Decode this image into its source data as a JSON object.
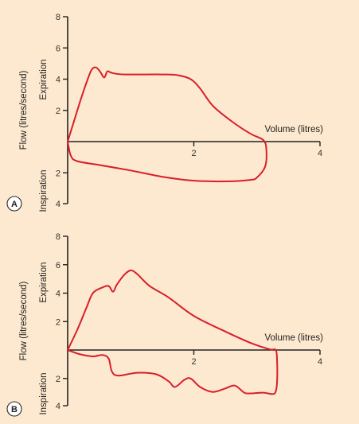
{
  "chart_data": [
    {
      "panel": "A",
      "type": "line",
      "ylabel": "Flow (litres/second)",
      "xlabel": "Volume (litres)",
      "upper_label": "Expiration",
      "lower_label": "Inspiration",
      "xticks": [
        {
          "value": 2,
          "label": "2"
        },
        {
          "value": 4,
          "label": "4"
        }
      ],
      "yticks_upper": [
        {
          "value": 8,
          "label": "8"
        },
        {
          "value": 6,
          "label": "6"
        },
        {
          "value": 4,
          "label": "4"
        },
        {
          "value": 2,
          "label": "2"
        }
      ],
      "yticks_lower": [
        {
          "value": -2,
          "label": "2"
        },
        {
          "value": -4,
          "label": "4"
        }
      ],
      "xlim": [
        0,
        4
      ],
      "ylim": [
        -4,
        8
      ],
      "series": [
        {
          "color": "#d81e2a",
          "points": [
            [
              0,
              0
            ],
            [
              0.1,
              1.3
            ],
            [
              0.2,
              2.6
            ],
            [
              0.3,
              3.8
            ],
            [
              0.38,
              4.6
            ],
            [
              0.45,
              4.75
            ],
            [
              0.52,
              4.45
            ],
            [
              0.58,
              4.1
            ],
            [
              0.63,
              4.5
            ],
            [
              0.7,
              4.4
            ],
            [
              0.9,
              4.3
            ],
            [
              1.5,
              4.3
            ],
            [
              1.75,
              4.25
            ],
            [
              1.95,
              4.0
            ],
            [
              2.1,
              3.4
            ],
            [
              2.3,
              2.3
            ],
            [
              2.6,
              1.3
            ],
            [
              2.9,
              0.5
            ],
            [
              3.1,
              0.1
            ],
            [
              3.15,
              -0.5
            ],
            [
              3.13,
              -1.6
            ],
            [
              3.0,
              -2.3
            ],
            [
              2.9,
              -2.45
            ],
            [
              2.5,
              -2.55
            ],
            [
              2.0,
              -2.5
            ],
            [
              1.5,
              -2.25
            ],
            [
              1.0,
              -1.85
            ],
            [
              0.5,
              -1.5
            ],
            [
              0.15,
              -1.25
            ],
            [
              0.05,
              -0.9
            ],
            [
              0,
              0
            ]
          ]
        }
      ]
    },
    {
      "panel": "B",
      "type": "line",
      "ylabel": "Flow (litres/second)",
      "xlabel": "Volume (litres)",
      "upper_label": "Expiration",
      "lower_label": "Inspiration",
      "xticks": [
        {
          "value": 2,
          "label": "2"
        },
        {
          "value": 4,
          "label": "4"
        }
      ],
      "yticks_upper": [
        {
          "value": 8,
          "label": "8"
        },
        {
          "value": 6,
          "label": "6"
        },
        {
          "value": 4,
          "label": "4"
        },
        {
          "value": 2,
          "label": "2"
        }
      ],
      "yticks_lower": [
        {
          "value": -2,
          "label": "2"
        },
        {
          "value": -4,
          "label": "4"
        }
      ],
      "xlim": [
        0,
        4
      ],
      "ylim": [
        -4,
        8
      ],
      "series": [
        {
          "color": "#d81e2a",
          "points": [
            [
              0,
              0
            ],
            [
              0.15,
              1.4
            ],
            [
              0.3,
              3.0
            ],
            [
              0.4,
              4.0
            ],
            [
              0.55,
              4.4
            ],
            [
              0.65,
              4.5
            ],
            [
              0.72,
              4.1
            ],
            [
              0.78,
              4.6
            ],
            [
              0.9,
              5.3
            ],
            [
              1.0,
              5.6
            ],
            [
              1.1,
              5.35
            ],
            [
              1.3,
              4.5
            ],
            [
              1.6,
              3.7
            ],
            [
              2.0,
              2.4
            ],
            [
              2.5,
              1.3
            ],
            [
              2.9,
              0.5
            ],
            [
              3.2,
              0.05
            ],
            [
              3.3,
              0
            ],
            [
              3.32,
              -0.8
            ],
            [
              3.32,
              -2.2
            ],
            [
              3.3,
              -2.9
            ],
            [
              3.25,
              -3.1
            ],
            [
              3.1,
              -3.0
            ],
            [
              2.9,
              -3.05
            ],
            [
              2.8,
              -3.0
            ],
            [
              2.65,
              -2.5
            ],
            [
              2.5,
              -2.7
            ],
            [
              2.3,
              -2.95
            ],
            [
              2.1,
              -2.6
            ],
            [
              1.95,
              -2.0
            ],
            [
              1.85,
              -2.1
            ],
            [
              1.7,
              -2.6
            ],
            [
              1.6,
              -2.2
            ],
            [
              1.4,
              -1.7
            ],
            [
              1.1,
              -1.6
            ],
            [
              0.8,
              -1.8
            ],
            [
              0.7,
              -1.5
            ],
            [
              0.65,
              -0.6
            ],
            [
              0.55,
              -0.35
            ],
            [
              0.4,
              -0.45
            ],
            [
              0.2,
              -0.3
            ],
            [
              0,
              0
            ]
          ]
        }
      ]
    }
  ]
}
